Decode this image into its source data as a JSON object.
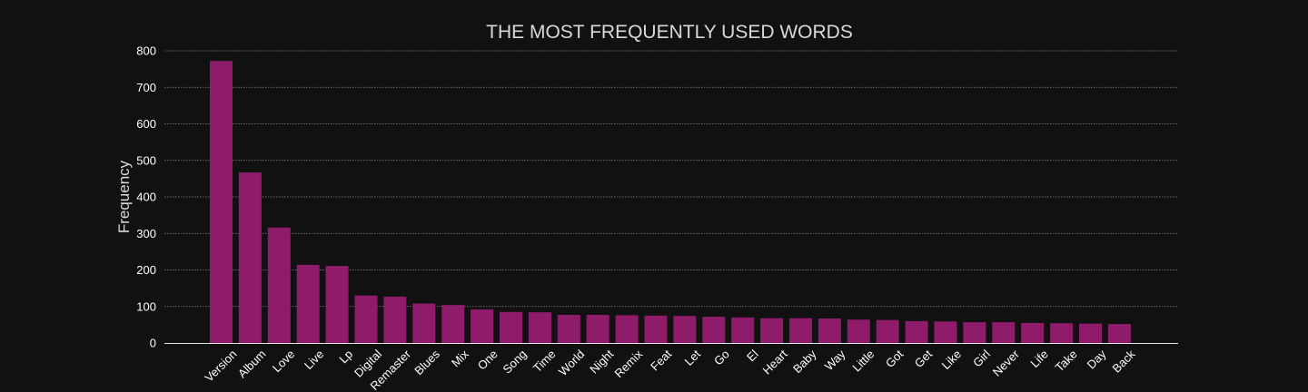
{
  "chart_data": {
    "type": "bar",
    "title": "THE MOST FREQUENTLY USED WORDS",
    "xlabel": "",
    "ylabel": "Frequency",
    "ylim": [
      0,
      800
    ],
    "yticks": [
      0,
      100,
      200,
      300,
      400,
      500,
      600,
      700,
      800
    ],
    "grid": true,
    "bar_color": "#8e1c6b",
    "background_color": "#111111",
    "text_color": "#ffffff",
    "categories": [
      "Version",
      "Album",
      "Love",
      "Live",
      "Lp",
      "Digital",
      "Remaster",
      "Blues",
      "Mix",
      "One",
      "Song",
      "Time",
      "World",
      "Night",
      "Remix",
      "Feat",
      "Let",
      "Go",
      "El",
      "Heart",
      "Baby",
      "Way",
      "Little",
      "Got",
      "Get",
      "Like",
      "Girl",
      "Never",
      "Life",
      "Take",
      "Day",
      "Back"
    ],
    "values": [
      772,
      467,
      316,
      214,
      211,
      130,
      127,
      108,
      104,
      92,
      85,
      84,
      77,
      77,
      76,
      75,
      74,
      72,
      70,
      68,
      68,
      67,
      64,
      63,
      60,
      59,
      57,
      57,
      55,
      54,
      53,
      52
    ]
  }
}
